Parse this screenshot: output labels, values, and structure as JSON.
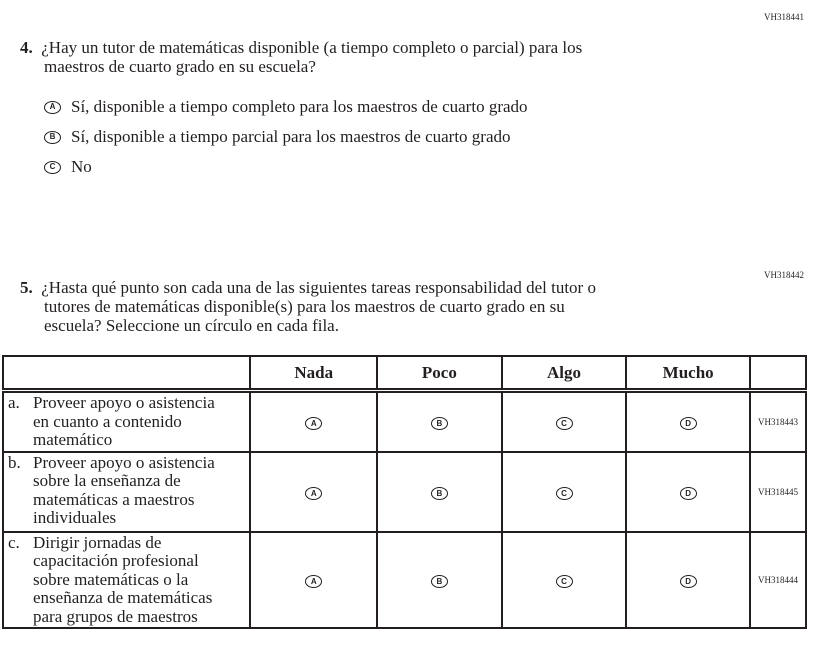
{
  "q4": {
    "code": "VH318441",
    "number": "4.",
    "text_lines": [
      "¿Hay un tutor de matemáticas disponible (a tiempo completo o parcial) para los",
      "maestros de cuarto grado en su escuela?"
    ],
    "options": [
      {
        "letter": "A",
        "label": "Sí, disponible a tiempo completo para los maestros de cuarto grado"
      },
      {
        "letter": "B",
        "label": "Sí, disponible a tiempo parcial para los maestros de cuarto grado"
      },
      {
        "letter": "C",
        "label": "No"
      }
    ]
  },
  "q5": {
    "code": "VH318442",
    "number": "5.",
    "text_lines": [
      "¿Hasta qué punto son cada una de las siguientes tareas responsabilidad del tutor o",
      "tutores de matemáticas disponible(s) para los maestros de cuarto grado en su",
      "escuela? Seleccione un círculo en cada fila."
    ],
    "columns": [
      "Nada",
      "Poco",
      "Algo",
      "Mucho"
    ],
    "bubbles": [
      "A",
      "B",
      "C",
      "D"
    ],
    "rows": [
      {
        "letter": "a.",
        "lines": [
          "Proveer apoyo o asistencia",
          "en cuanto a contenido",
          "matemático"
        ],
        "code": "VH318443"
      },
      {
        "letter": "b.",
        "lines": [
          "Proveer apoyo o asistencia",
          "sobre la enseñanza de",
          "matemáticas a maestros",
          "individuales"
        ],
        "code": "VH318445"
      },
      {
        "letter": "c.",
        "lines": [
          "Dirigir jornadas de",
          "capacitación profesional",
          "sobre matemáticas o la",
          "enseñanza de matemáticas",
          "para grupos de maestros"
        ],
        "code": "VH318444"
      }
    ]
  }
}
